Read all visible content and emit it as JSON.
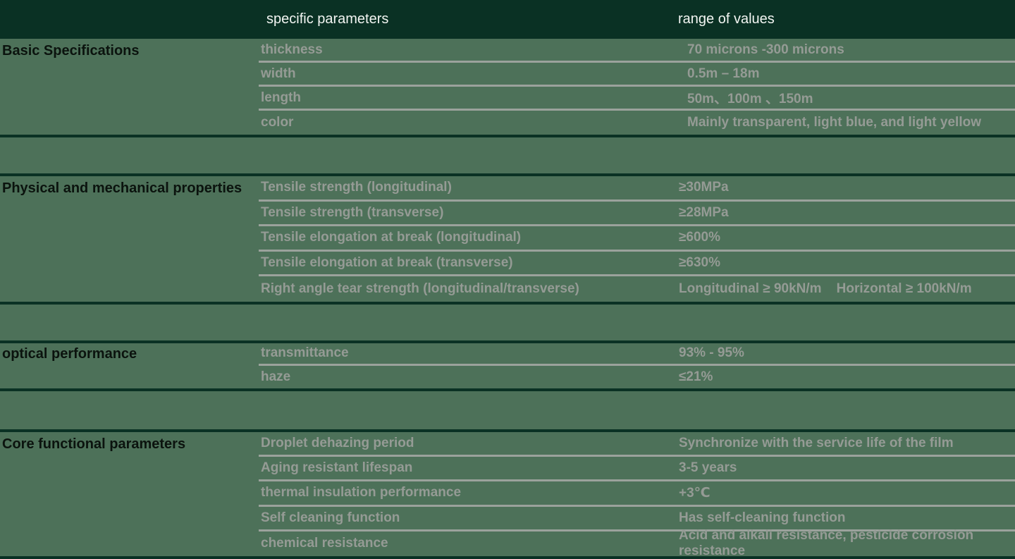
{
  "table": {
    "columns": {
      "parameters": "specific parameters",
      "values": "range of values"
    },
    "sections": [
      {
        "title": "Basic Specifications",
        "rows": [
          {
            "param": "thickness",
            "value": "70 microns -300 microns"
          },
          {
            "param": "width",
            "value": "0.5m – 18m"
          },
          {
            "param": "length",
            "value": "50m、100m 、150m"
          },
          {
            "param": "color",
            "value": "Mainly transparent, light blue, and light yellow"
          }
        ]
      },
      {
        "title": "Physical and mechanical properties",
        "rows": [
          {
            "param": "Tensile strength (longitudinal)",
            "value": "≥30MPa"
          },
          {
            "param": "Tensile strength (transverse)",
            "value": "≥28MPa"
          },
          {
            "param": "Tensile elongation at break (longitudinal)",
            "value": "≥600%"
          },
          {
            "param": "Tensile elongation at break (transverse)",
            "value": "≥630%"
          },
          {
            "param": "Right angle tear strength (longitudinal/transverse)",
            "value": "Longitudinal ≥ 90kN/m    Horizontal ≥ 100kN/m"
          }
        ]
      },
      {
        "title": "optical performance",
        "rows": [
          {
            "param": "transmittance",
            "value": "93% - 95%"
          },
          {
            "param": "haze",
            "value": "≤21%"
          }
        ]
      },
      {
        "title": "Core functional parameters",
        "rows": [
          {
            "param": "Droplet dehazing period",
            "value": "Synchronize with the service life of the film"
          },
          {
            "param": "Aging resistant lifespan",
            "value": "3-5 years"
          },
          {
            "param": "thermal insulation performance",
            "value": "+3℃"
          },
          {
            "param": "Self cleaning function",
            "value": "Has self-cleaning function"
          },
          {
            "param": "chemical resistance",
            "value": "Acid and alkali resistance, pesticide corrosion resistance"
          }
        ]
      }
    ]
  },
  "colors": {
    "background_green": "#4D7159",
    "header_dark_green": "#0A3124",
    "row_text_gray": "#959B95",
    "separator_gray": "#9BA29C",
    "header_text": "#F2F5F2",
    "section_title_text": "#0B130E"
  }
}
